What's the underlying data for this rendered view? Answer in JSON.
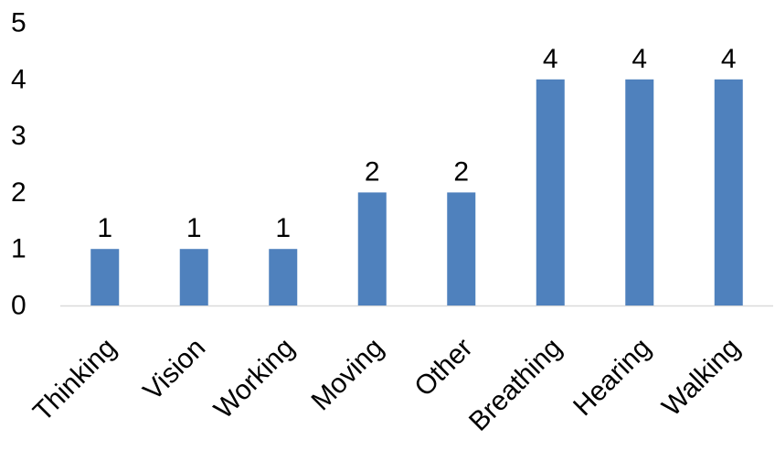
{
  "chart_data": {
    "type": "bar",
    "categories": [
      "Thinking",
      "Vision",
      "Working",
      "Moving",
      "Other",
      "Breathing",
      "Hearing",
      "Walking"
    ],
    "values": [
      1,
      1,
      1,
      2,
      2,
      4,
      4,
      4
    ],
    "data_labels": [
      "1",
      "1",
      "1",
      "2",
      "2",
      "4",
      "4",
      "4"
    ],
    "y_ticks": [
      0,
      1,
      2,
      3,
      4,
      5
    ],
    "ylim": [
      0,
      5
    ],
    "title": "",
    "xlabel": "",
    "ylabel": "",
    "grid": false,
    "legend": "none",
    "x_tick_rotation": "-45",
    "bar_color": "#4F81BD",
    "axis_color": "#D9D9D9"
  }
}
